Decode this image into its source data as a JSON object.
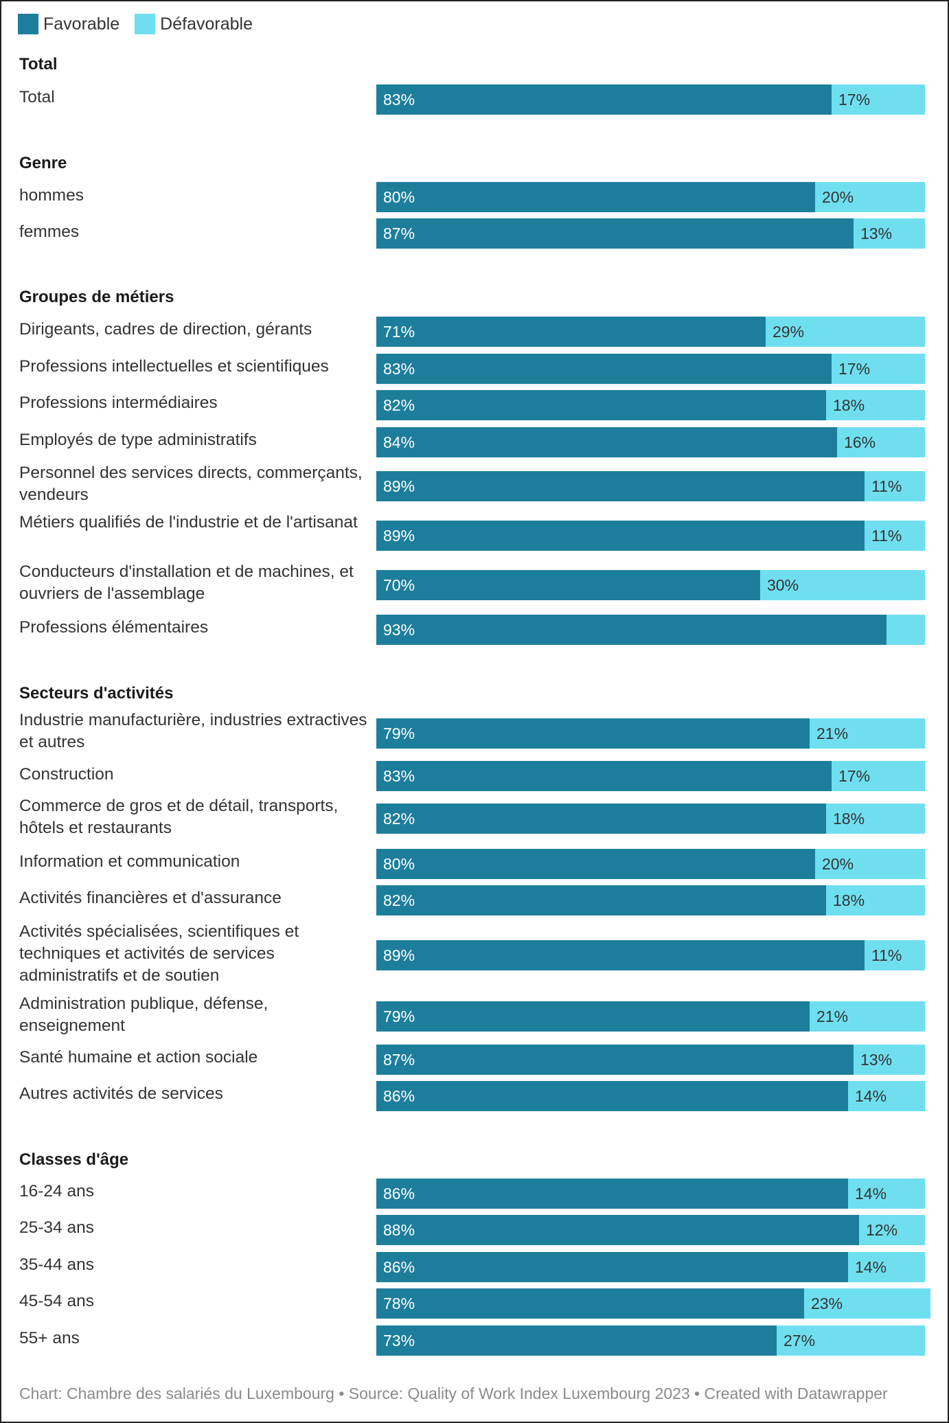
{
  "legend": {
    "favorable": "Favorable",
    "unfavorable": "Défavorable"
  },
  "colors": {
    "favorable": "#1d7e9c",
    "unfavorable": "#6fdff0"
  },
  "footer": "Chart: Chambre des salariés du Luxembourg • Source: Quality of Work Index Luxembourg 2023 • Created with Datawrapper",
  "chart_data": {
    "type": "bar",
    "orientation": "horizontal-stacked",
    "title": "",
    "xlabel": "",
    "ylabel": "",
    "xlim": [
      0,
      100
    ],
    "unit": "%",
    "grid": false,
    "legend_position": "top-left",
    "series": [
      {
        "name": "Favorable",
        "color": "#1d7e9c"
      },
      {
        "name": "Défavorable",
        "color": "#6fdff0"
      }
    ],
    "groups": [
      {
        "heading": "Total",
        "rows": [
          {
            "label": "Total",
            "favorable": 83,
            "unfavorable": 17,
            "fav_label": "83%",
            "unfav_label": "17%"
          }
        ]
      },
      {
        "heading": "Genre",
        "rows": [
          {
            "label": "hommes",
            "favorable": 80,
            "unfavorable": 20,
            "fav_label": "80%",
            "unfav_label": "20%"
          },
          {
            "label": "femmes",
            "favorable": 87,
            "unfavorable": 13,
            "fav_label": "87%",
            "unfav_label": "13%"
          }
        ]
      },
      {
        "heading": "Groupes de métiers",
        "rows": [
          {
            "label": "Dirigeants, cadres de direction, gérants",
            "favorable": 71,
            "unfavorable": 29,
            "fav_label": "71%",
            "unfav_label": "29%"
          },
          {
            "label": "Professions intellectuelles et scientifiques",
            "favorable": 83,
            "unfavorable": 17,
            "fav_label": "83%",
            "unfav_label": "17%"
          },
          {
            "label": "Professions intermédiaires",
            "favorable": 82,
            "unfavorable": 18,
            "fav_label": "82%",
            "unfav_label": "18%"
          },
          {
            "label": "Employés de type administratifs",
            "favorable": 84,
            "unfavorable": 16,
            "fav_label": "84%",
            "unfav_label": "16%"
          },
          {
            "label": "Personnel des services directs, commerçants, vendeurs",
            "favorable": 89,
            "unfavorable": 11,
            "fav_label": "89%",
            "unfav_label": "11%"
          },
          {
            "label": "Métiers qualifiés de l'industrie et de l'artisanat",
            "favorable": 89,
            "unfavorable": 11,
            "fav_label": "89%",
            "unfav_label": "11%"
          },
          {
            "label": "Conducteurs d'installation et de machines, et ouvriers de l'assemblage",
            "favorable": 70,
            "unfavorable": 30,
            "fav_label": "70%",
            "unfav_label": "30%"
          },
          {
            "label": "Professions élémentaires",
            "favorable": 93,
            "unfavorable": 7,
            "fav_label": "93%",
            "unfav_label": ""
          }
        ]
      },
      {
        "heading": "Secteurs d'activités",
        "rows": [
          {
            "label": "Industrie manufacturière, industries extractives et autres",
            "favorable": 79,
            "unfavorable": 21,
            "fav_label": "79%",
            "unfav_label": "21%"
          },
          {
            "label": "Construction",
            "favorable": 83,
            "unfavorable": 17,
            "fav_label": "83%",
            "unfav_label": "17%"
          },
          {
            "label": "Commerce de gros et de détail, transports, hôtels et restaurants",
            "favorable": 82,
            "unfavorable": 18,
            "fav_label": "82%",
            "unfav_label": "18%"
          },
          {
            "label": "Information et communication",
            "favorable": 80,
            "unfavorable": 20,
            "fav_label": "80%",
            "unfav_label": "20%"
          },
          {
            "label": "Activités financières et d'assurance",
            "favorable": 82,
            "unfavorable": 18,
            "fav_label": "82%",
            "unfav_label": "18%"
          },
          {
            "label": "Activités spécialisées, scientifiques et techniques et activités de services administratifs et de soutien",
            "favorable": 89,
            "unfavorable": 11,
            "fav_label": "89%",
            "unfav_label": "11%"
          },
          {
            "label": "Administration publique, défense, enseignement",
            "favorable": 79,
            "unfavorable": 21,
            "fav_label": "79%",
            "unfav_label": "21%"
          },
          {
            "label": "Santé humaine et action sociale",
            "favorable": 87,
            "unfavorable": 13,
            "fav_label": "87%",
            "unfav_label": "13%"
          },
          {
            "label": "Autres activités de services",
            "favorable": 86,
            "unfavorable": 14,
            "fav_label": "86%",
            "unfav_label": "14%"
          }
        ]
      },
      {
        "heading": "Classes d'âge",
        "rows": [
          {
            "label": "16-24 ans",
            "favorable": 86,
            "unfavorable": 14,
            "fav_label": "86%",
            "unfav_label": "14%"
          },
          {
            "label": "25-34 ans",
            "favorable": 88,
            "unfavorable": 12,
            "fav_label": "88%",
            "unfav_label": "12%"
          },
          {
            "label": "35-44 ans",
            "favorable": 86,
            "unfavorable": 14,
            "fav_label": "86%",
            "unfav_label": "14%"
          },
          {
            "label": "45-54 ans",
            "favorable": 78,
            "unfavorable": 23,
            "fav_label": "78%",
            "unfav_label": "23%"
          },
          {
            "label": "55+ ans",
            "favorable": 73,
            "unfavorable": 27,
            "fav_label": "73%",
            "unfav_label": "27%"
          }
        ]
      }
    ]
  }
}
